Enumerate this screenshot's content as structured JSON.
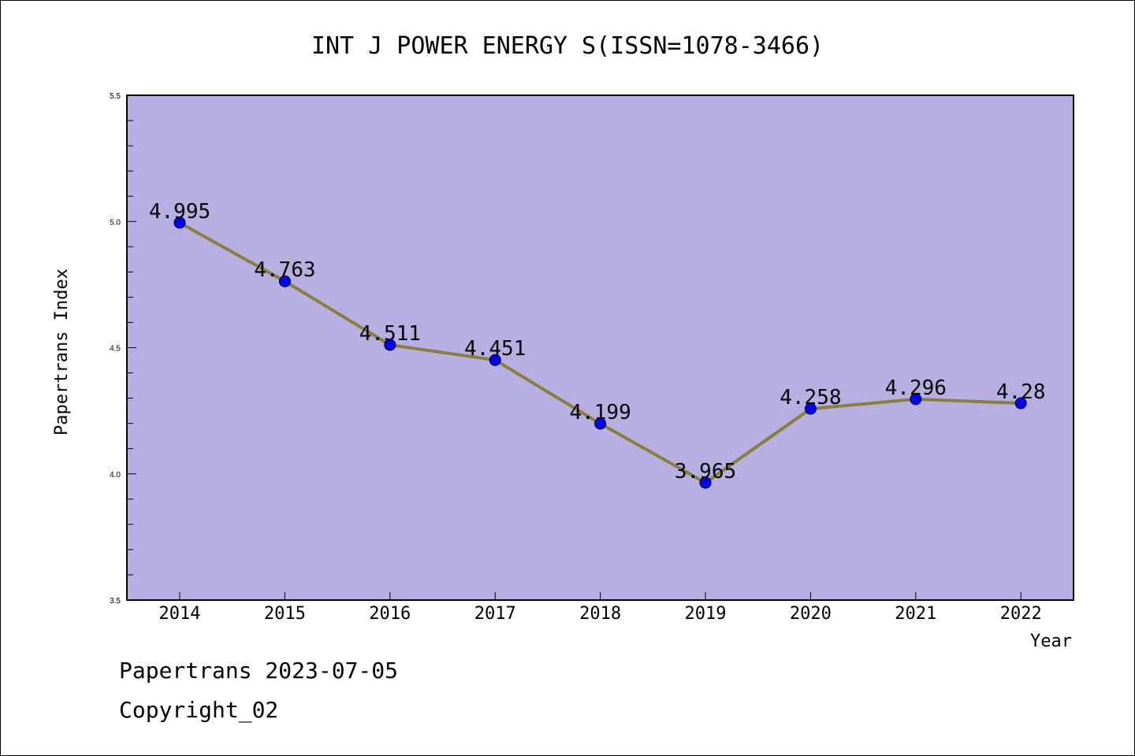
{
  "chart_data": {
    "type": "line",
    "title": "INT J POWER ENERGY S(ISSN=1078-3466)",
    "xlabel": "Year",
    "ylabel": "Papertrans Index",
    "categories": [
      "2014",
      "2015",
      "2016",
      "2017",
      "2018",
      "2019",
      "2020",
      "2021",
      "2022"
    ],
    "series": [
      {
        "values": [
          4.995,
          4.763,
          4.511,
          4.451,
          4.199,
          3.965,
          4.258,
          4.296,
          4.28
        ],
        "data_labels": [
          "4.995",
          "4.763",
          "4.511",
          "4.451",
          "4.199",
          "3.965",
          "4.258",
          "4.296",
          "4.28"
        ]
      }
    ],
    "ylim": [
      3.5,
      5.5
    ],
    "yticks": [
      "3.5",
      "4.0",
      "4.5",
      "5.0",
      "5.5"
    ],
    "grid": false,
    "colors": {
      "plot_background": "#b5afe2",
      "line": "#8b7d3a",
      "marker": "#0000ff"
    }
  },
  "footer": {
    "date_text": "Papertrans 2023-07-05",
    "copyright_text": "Copyright_02"
  }
}
